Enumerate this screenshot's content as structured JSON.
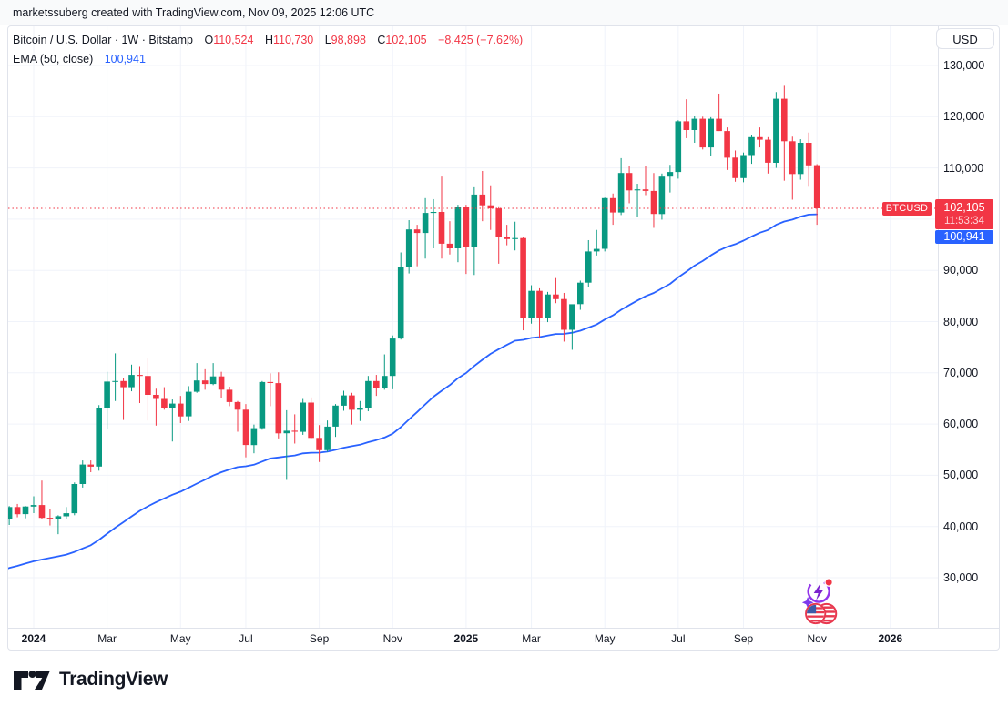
{
  "top_bar": {
    "attribution": "marketssuberg created with TradingView.com, Nov 09, 2025 12:06 UTC"
  },
  "legend": {
    "symbol_title": "Bitcoin / U.S. Dollar · 1W · Bitstamp",
    "o_label": "O",
    "o_value": "110,524",
    "h_label": "H",
    "h_value": "110,730",
    "l_label": "L",
    "l_value": "98,898",
    "c_label": "C",
    "c_value": "102,105",
    "change": "−8,425 (−7.62%)",
    "indicator_name": "EMA (50, close)",
    "indicator_value": "100,941"
  },
  "price_axis": {
    "currency": "USD",
    "labels": [
      {
        "text": "130,000",
        "value": 130000
      },
      {
        "text": "120,000",
        "value": 120000
      },
      {
        "text": "110,000",
        "value": 110000
      },
      {
        "text": "100,000",
        "value": 100000
      },
      {
        "text": "90,000",
        "value": 90000
      },
      {
        "text": "80,000",
        "value": 80000
      },
      {
        "text": "70,000",
        "value": 70000
      },
      {
        "text": "60,000",
        "value": 60000
      },
      {
        "text": "50,000",
        "value": 50000
      },
      {
        "text": "40,000",
        "value": 40000
      },
      {
        "text": "30,000",
        "value": 30000
      }
    ],
    "last_price_badge": {
      "symbol": "BTCUSD",
      "price": "102,105",
      "countdown": "11:53:34"
    },
    "ema_badge": "100,941"
  },
  "time_axis": {
    "labels": [
      {
        "text": "2024",
        "week": 0,
        "bold": true
      },
      {
        "text": "Mar",
        "week": 9,
        "bold": false
      },
      {
        "text": "May",
        "week": 18,
        "bold": false
      },
      {
        "text": "Jul",
        "week": 26,
        "bold": false
      },
      {
        "text": "Sep",
        "week": 35,
        "bold": false
      },
      {
        "text": "Nov",
        "week": 44,
        "bold": false
      },
      {
        "text": "2025",
        "week": 53,
        "bold": true
      },
      {
        "text": "Mar",
        "week": 61,
        "bold": false
      },
      {
        "text": "May",
        "week": 70,
        "bold": false
      },
      {
        "text": "Jul",
        "week": 79,
        "bold": false
      },
      {
        "text": "Sep",
        "week": 87,
        "bold": false
      },
      {
        "text": "Nov",
        "week": 96,
        "bold": false
      },
      {
        "text": "2026",
        "week": 105,
        "bold": true
      }
    ]
  },
  "footer": {
    "logo_text": "TradingView"
  },
  "colors": {
    "up": "#089981",
    "down": "#f23645",
    "ema": "#2962ff",
    "price_line": "#f23645",
    "grid": "#f0f3fa",
    "border": "#e0e3eb",
    "text": "#131722"
  },
  "chart_data": {
    "type": "candlestick",
    "title": "Bitcoin / U.S. Dollar · 1W · Bitstamp",
    "symbol": "BTCUSD",
    "interval": "1W",
    "exchange": "Bitstamp",
    "quote_currency": "USD",
    "y_axis_range": [
      26500,
      133500
    ],
    "grid": true,
    "last_price": 102105,
    "overlay": {
      "name": "EMA",
      "period": 50,
      "source": "close",
      "last_value": 100941,
      "visible_start_value": 31000
    },
    "weeks_before_2024": 4,
    "ohlc_weekly": [
      [
        44200,
        45000,
        40600,
        41500
      ],
      [
        41500,
        44000,
        40300,
        43800
      ],
      [
        43800,
        44400,
        41800,
        42400
      ],
      [
        42400,
        44000,
        41600,
        43900
      ],
      [
        43900,
        45900,
        42600,
        44200
      ],
      [
        44200,
        48970,
        41500,
        41700
      ],
      [
        41700,
        43400,
        40200,
        41500
      ],
      [
        41500,
        42200,
        38500,
        42000
      ],
      [
        42000,
        43800,
        41400,
        42600
      ],
      [
        42600,
        48600,
        42200,
        48300
      ],
      [
        48300,
        52900,
        47600,
        52100
      ],
      [
        52100,
        52900,
        50600,
        51700
      ],
      [
        51700,
        63700,
        50900,
        63100
      ],
      [
        63100,
        70200,
        59000,
        68300
      ],
      [
        68300,
        73800,
        64500,
        68400
      ],
      [
        68400,
        68900,
        60800,
        67200
      ],
      [
        67200,
        71600,
        66400,
        69600
      ],
      [
        69600,
        71300,
        64100,
        69400
      ],
      [
        69400,
        72800,
        60700,
        65700
      ],
      [
        65700,
        66900,
        59700,
        64900
      ],
      [
        64900,
        67200,
        62800,
        63100
      ],
      [
        63100,
        64800,
        56600,
        64000
      ],
      [
        64000,
        65500,
        60200,
        61500
      ],
      [
        61500,
        67400,
        60600,
        66300
      ],
      [
        66300,
        71900,
        66100,
        68500
      ],
      [
        68500,
        70700,
        66700,
        67800
      ],
      [
        67800,
        71900,
        67600,
        69300
      ],
      [
        69300,
        70200,
        65000,
        66700
      ],
      [
        66700,
        67300,
        63500,
        64300
      ],
      [
        64300,
        64500,
        58500,
        62800
      ],
      [
        62800,
        63900,
        53500,
        55900
      ],
      [
        55900,
        59900,
        54300,
        59200
      ],
      [
        59200,
        68400,
        58900,
        68200
      ],
      [
        68200,
        69900,
        63500,
        68000
      ],
      [
        68000,
        70100,
        57200,
        58200
      ],
      [
        58200,
        62700,
        49100,
        58700
      ],
      [
        58700,
        61900,
        56200,
        58500
      ],
      [
        58500,
        64900,
        57900,
        64200
      ],
      [
        64200,
        65200,
        57200,
        57300
      ],
      [
        57300,
        59800,
        52600,
        54900
      ],
      [
        54900,
        60700,
        54600,
        59500
      ],
      [
        59500,
        63900,
        57500,
        63600
      ],
      [
        63600,
        66500,
        62600,
        65600
      ],
      [
        65600,
        66100,
        59900,
        62800
      ],
      [
        62800,
        64500,
        60600,
        63200
      ],
      [
        63200,
        69400,
        62500,
        68400
      ],
      [
        68400,
        69600,
        65500,
        67000
      ],
      [
        67000,
        73600,
        66700,
        69400
      ],
      [
        69400,
        77300,
        66800,
        76700
      ],
      [
        76700,
        93500,
        76500,
        90600
      ],
      [
        90600,
        99800,
        89400,
        98000
      ],
      [
        98000,
        98900,
        90800,
        97300
      ],
      [
        97300,
        104100,
        92300,
        101200
      ],
      [
        101200,
        103900,
        94300,
        101400
      ],
      [
        101400,
        108300,
        92300,
        95200
      ],
      [
        95200,
        99600,
        93100,
        94300
      ],
      [
        94300,
        102800,
        91600,
        102300
      ],
      [
        102300,
        102800,
        89300,
        94600
      ],
      [
        94600,
        106400,
        89100,
        104800
      ],
      [
        104800,
        109400,
        99600,
        102700
      ],
      [
        102700,
        106600,
        97900,
        102100
      ],
      [
        102100,
        102500,
        91300,
        96600
      ],
      [
        96600,
        98900,
        94900,
        96100
      ],
      [
        96100,
        99500,
        93900,
        96300
      ],
      [
        96300,
        96500,
        78300,
        80700
      ],
      [
        80700,
        87100,
        79600,
        86000
      ],
      [
        86000,
        86500,
        76700,
        80700
      ],
      [
        80700,
        85800,
        79900,
        85300
      ],
      [
        85300,
        88500,
        83600,
        84400
      ],
      [
        84400,
        85600,
        76100,
        78400
      ],
      [
        78400,
        81200,
        74500,
        83400
      ],
      [
        83400,
        88000,
        82300,
        87600
      ],
      [
        87600,
        95900,
        86800,
        93700
      ],
      [
        93700,
        97900,
        92900,
        94200
      ],
      [
        94200,
        104200,
        93700,
        104100
      ],
      [
        104100,
        105000,
        98900,
        101300
      ],
      [
        101300,
        111900,
        100800,
        109000
      ],
      [
        109000,
        110400,
        103100,
        105600
      ],
      [
        105600,
        106900,
        100400,
        105800
      ],
      [
        105800,
        110400,
        104700,
        105500
      ],
      [
        105500,
        109000,
        98300,
        101000
      ],
      [
        101000,
        108900,
        99900,
        108300
      ],
      [
        108300,
        110600,
        105200,
        109200
      ],
      [
        109200,
        119300,
        107900,
        119100
      ],
      [
        119100,
        123400,
        115800,
        117400
      ],
      [
        117400,
        120200,
        114900,
        119600
      ],
      [
        119600,
        120000,
        113600,
        114000
      ],
      [
        114000,
        119900,
        112400,
        119600
      ],
      [
        119600,
        124500,
        117200,
        117200
      ],
      [
        117200,
        117900,
        109600,
        112000
      ],
      [
        112000,
        113400,
        107300,
        108000
      ],
      [
        108000,
        113000,
        107200,
        112500
      ],
      [
        112500,
        116500,
        110800,
        116000
      ],
      [
        116000,
        117900,
        114000,
        115500
      ],
      [
        115500,
        116000,
        108900,
        111000
      ],
      [
        111000,
        124800,
        110000,
        123500
      ],
      [
        123500,
        126200,
        107500,
        115200
      ],
      [
        115200,
        116100,
        103800,
        108800
      ],
      [
        108800,
        115600,
        107700,
        114900
      ],
      [
        114900,
        116900,
        106500,
        110500
      ],
      [
        110524,
        110730,
        98898,
        102105
      ]
    ],
    "events": [
      {
        "icon": "economic-events-flash-icon",
        "position_week": 96
      },
      {
        "icon": "us-flag-economic-event-icon",
        "position_week": 96
      }
    ]
  }
}
